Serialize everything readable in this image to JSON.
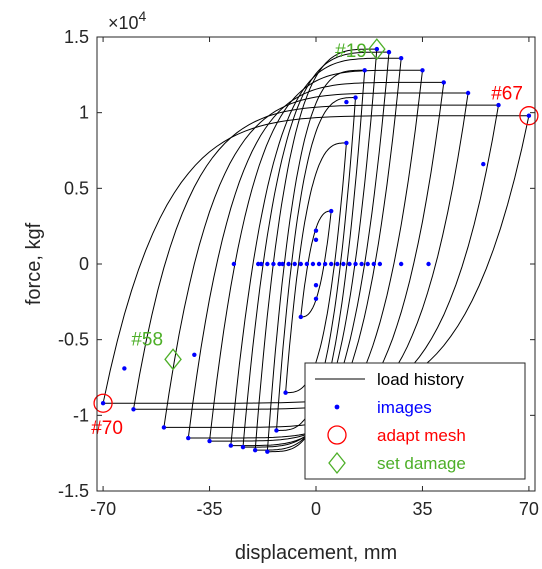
{
  "chart_data": {
    "type": "line",
    "xlabel": "displacement, mm",
    "ylabel": "force, kgf",
    "y_exponent_label": "×10",
    "y_exponent_power": "4",
    "xlim": [
      -72,
      72
    ],
    "ylim": [
      -15000,
      15000
    ],
    "x_ticks": [
      -70,
      -35,
      0,
      35,
      70
    ],
    "x_tick_labels": [
      "-70",
      "-35",
      "0",
      "35",
      "70"
    ],
    "y_ticks": [
      -15000,
      -10000,
      -5000,
      0,
      5000,
      10000,
      15000
    ],
    "y_tick_labels": [
      "-1.5",
      "-1",
      "-0.5",
      "0",
      "0.5",
      "1",
      "1.5"
    ],
    "grid": false,
    "legend_position": "bottom-right",
    "colors": {
      "load_history": "#000000",
      "images": "#0000ff",
      "adapt_mesh": "#ff0000",
      "set_damage": "#4daf28"
    },
    "cycles": [
      {
        "amp": 5,
        "f_max": 3500,
        "f_min": -3500
      },
      {
        "amp": 10,
        "f_max": 8000,
        "f_min": -8500
      },
      {
        "amp": 13,
        "f_max": 11000,
        "f_min": -11000
      },
      {
        "amp": 16,
        "f_max": 12800,
        "f_min": -12400
      },
      {
        "amp": 20,
        "f_max": 14200,
        "f_min": -12300
      },
      {
        "amp": 24,
        "f_max": 14000,
        "f_min": -12100
      },
      {
        "amp": 28,
        "f_max": 13600,
        "f_min": -12000
      },
      {
        "amp": 35,
        "f_max": 12800,
        "f_min": -11700
      },
      {
        "amp": 42,
        "f_max": 12000,
        "f_min": -11500
      },
      {
        "amp": 50,
        "f_max": 11300,
        "f_min": -10800
      },
      {
        "amp": 60,
        "f_max": 10500,
        "f_min": -9600
      },
      {
        "amp": 70,
        "f_max": 9800,
        "f_min": -9200
      }
    ],
    "image_points_extra": [
      {
        "x": 55,
        "y": 6600
      },
      {
        "x": 10,
        "y": 10700
      },
      {
        "x": -40,
        "y": -6000
      },
      {
        "x": -63,
        "y": -6900
      },
      {
        "x": -27,
        "y": 0
      },
      {
        "x": -19,
        "y": 0
      },
      {
        "x": -18,
        "y": 0
      },
      {
        "x": -16,
        "y": 0
      },
      {
        "x": -14,
        "y": 0
      },
      {
        "x": -12,
        "y": 0
      },
      {
        "x": -11,
        "y": 0
      },
      {
        "x": -9,
        "y": 0
      },
      {
        "x": -7,
        "y": 0
      },
      {
        "x": -5,
        "y": 0
      },
      {
        "x": -3,
        "y": 0
      },
      {
        "x": -1,
        "y": 0
      },
      {
        "x": 1,
        "y": 0
      },
      {
        "x": 3,
        "y": 0
      },
      {
        "x": 5,
        "y": 0
      },
      {
        "x": 7,
        "y": 0
      },
      {
        "x": 9,
        "y": 0
      },
      {
        "x": 11,
        "y": 0
      },
      {
        "x": 13,
        "y": 0
      },
      {
        "x": 15,
        "y": 0
      },
      {
        "x": 17,
        "y": 0
      },
      {
        "x": 19,
        "y": 0
      },
      {
        "x": 21,
        "y": 0
      },
      {
        "x": 28,
        "y": 0
      },
      {
        "x": 37,
        "y": 0
      },
      {
        "x": 0,
        "y": 2200
      },
      {
        "x": 0,
        "y": 1600
      },
      {
        "x": 0,
        "y": -1400
      },
      {
        "x": 0,
        "y": -2300
      }
    ],
    "adapt_mesh": [
      {
        "label": "#67",
        "x": 70,
        "y": 9800
      },
      {
        "label": "#70",
        "x": -70,
        "y": -9200
      }
    ],
    "set_damage": [
      {
        "label": "#19",
        "x": 20,
        "y": 14200
      },
      {
        "label": "#58",
        "x": -47,
        "y": -6300
      }
    ],
    "legend": [
      {
        "key": "load_history",
        "label": "load history"
      },
      {
        "key": "images",
        "label": "images"
      },
      {
        "key": "adapt_mesh",
        "label": "adapt mesh"
      },
      {
        "key": "set_damage",
        "label": "set damage"
      }
    ]
  }
}
